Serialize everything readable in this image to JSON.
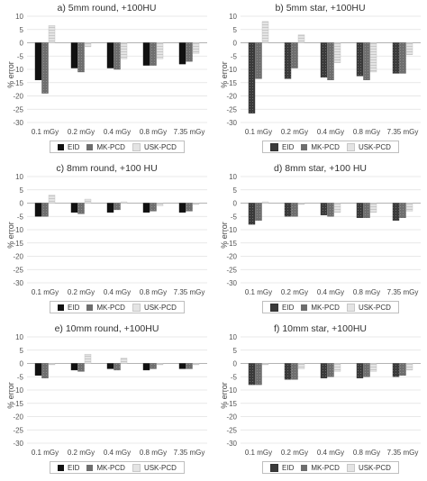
{
  "chart_data": [
    {
      "type": "bar",
      "title": "a) 5mm round, +100HU",
      "ylabel": "% error",
      "ylim": [
        -30,
        10
      ],
      "yticks": [
        10,
        5,
        0,
        -5,
        -10,
        -15,
        -20,
        -25,
        -30
      ],
      "categories": [
        "0.1 mGy",
        "0.2 mGy",
        "0.4 mGy",
        "0.8 mGy",
        "7.35 mGy"
      ],
      "series": [
        {
          "name": "EID",
          "values": [
            -14,
            -9.5,
            -9.5,
            -8.5,
            -8
          ]
        },
        {
          "name": "MK-PCD",
          "values": [
            -19,
            -11,
            -10,
            -8.5,
            -7
          ]
        },
        {
          "name": "USK-PCD",
          "values": [
            6.5,
            -1.5,
            -6,
            -6,
            -4
          ]
        }
      ],
      "legend": "bottom",
      "grid": true
    },
    {
      "type": "bar",
      "title": "b) 5mm star, +100HU",
      "ylabel": "% error",
      "ylim": [
        -30,
        10
      ],
      "yticks": [
        10,
        5,
        0,
        -5,
        -10,
        -15,
        -20,
        -25,
        -30
      ],
      "categories": [
        "0.1 mGy",
        "0.2 mGy",
        "0.4 mGy",
        "0.8 mGy",
        "7.35 mGy"
      ],
      "series": [
        {
          "name": "EID",
          "values": [
            -26.5,
            -13.5,
            -13,
            -12.5,
            -11.5
          ]
        },
        {
          "name": "MK-PCD",
          "values": [
            -13.5,
            -9.5,
            -14,
            -14,
            -11.5
          ]
        },
        {
          "name": "USK-PCD",
          "values": [
            8,
            3,
            -7.5,
            -11,
            -4.5
          ]
        }
      ],
      "legend": "bottom",
      "grid": true
    },
    {
      "type": "bar",
      "title": "c) 8mm round, +100 HU",
      "ylabel": "% error",
      "ylim": [
        -30,
        10
      ],
      "yticks": [
        10,
        5,
        0,
        -5,
        -10,
        -15,
        -20,
        -25,
        -30
      ],
      "categories": [
        "0.1 mGy",
        "0.2 mGy",
        "0.4 mGy",
        "0.8 mGy",
        "7.35 mGy"
      ],
      "series": [
        {
          "name": "EID",
          "values": [
            -5,
            -3.5,
            -3.5,
            -3.5,
            -3.5
          ]
        },
        {
          "name": "MK-PCD",
          "values": [
            -5,
            -4,
            -2.5,
            -3,
            -3
          ]
        },
        {
          "name": "USK-PCD",
          "values": [
            3,
            1.5,
            0.5,
            -1,
            -0.5
          ]
        }
      ],
      "legend": "bottom",
      "grid": true
    },
    {
      "type": "bar",
      "title": "d) 8mm star, +100 HU",
      "ylabel": "% error",
      "ylim": [
        -30,
        10
      ],
      "yticks": [
        10,
        5,
        0,
        -5,
        -10,
        -15,
        -20,
        -25,
        -30
      ],
      "categories": [
        "0.1 mGy",
        "0.2 mGy",
        "0.4 mGy",
        "0.8 mGy",
        "7.35 mGy"
      ],
      "series": [
        {
          "name": "EID",
          "values": [
            -8,
            -5,
            -4.5,
            -5.5,
            -6.5
          ]
        },
        {
          "name": "MK-PCD",
          "values": [
            -6.5,
            -5,
            -5,
            -5.5,
            -5.5
          ]
        },
        {
          "name": "USK-PCD",
          "values": [
            0.5,
            -0.5,
            -3.5,
            -3.5,
            -3
          ]
        }
      ],
      "legend": "bottom",
      "grid": true
    },
    {
      "type": "bar",
      "title": "e) 10mm round, +100HU",
      "ylabel": "% error",
      "ylim": [
        -30,
        10
      ],
      "yticks": [
        10,
        5,
        0,
        -5,
        -10,
        -15,
        -20,
        -25,
        -30
      ],
      "categories": [
        "0.1 mGy",
        "0.2 mGy",
        "0.4 mGy",
        "0.8 mGy",
        "7.35 mGy"
      ],
      "series": [
        {
          "name": "EID",
          "values": [
            -4.5,
            -2.5,
            -2,
            -2.5,
            -2
          ]
        },
        {
          "name": "MK-PCD",
          "values": [
            -5.5,
            -3,
            -2.5,
            -2,
            -2
          ]
        },
        {
          "name": "USK-PCD",
          "values": [
            -0.5,
            3.5,
            2,
            -0.5,
            -0.5
          ]
        }
      ],
      "legend": "bottom",
      "grid": true
    },
    {
      "type": "bar",
      "title": "f) 10mm star, +100HU",
      "ylabel": "% error",
      "ylim": [
        -30,
        10
      ],
      "yticks": [
        10,
        5,
        0,
        -5,
        -10,
        -15,
        -20,
        -25,
        -30
      ],
      "categories": [
        "0.1 mGy",
        "0.2 mGy",
        "0.4 mGy",
        "0.8 mGy",
        "7.35 mGy"
      ],
      "series": [
        {
          "name": "EID",
          "values": [
            -8,
            -6,
            -5.5,
            -5.5,
            -5
          ]
        },
        {
          "name": "MK-PCD",
          "values": [
            -8,
            -6,
            -5,
            -5,
            -4.5
          ]
        },
        {
          "name": "USK-PCD",
          "values": [
            -0.5,
            -2,
            -3,
            -3,
            -2.5
          ]
        }
      ],
      "legend": "bottom",
      "grid": true
    }
  ]
}
